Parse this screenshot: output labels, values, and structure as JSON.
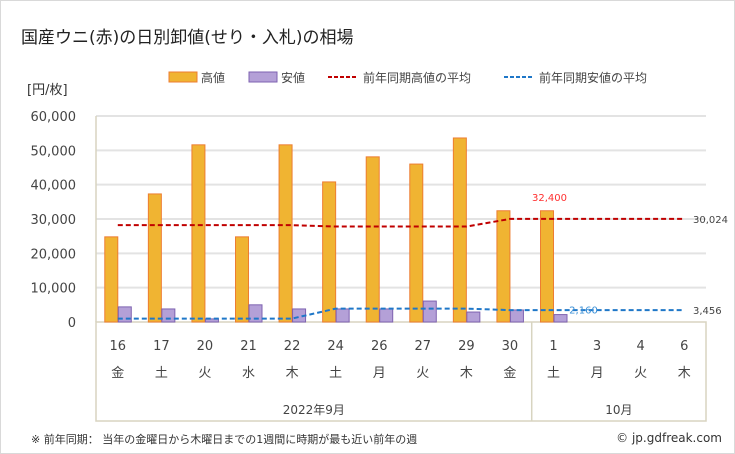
{
  "chart_data": {
    "type": "bar",
    "title": "国産ウニ(赤)の日別卸値(せり・入札)の相場",
    "ylabel": "[円/枚]",
    "ylim": [
      0,
      60000
    ],
    "yticks": [
      "0",
      "10,000",
      "20,000",
      "30,000",
      "40,000",
      "50,000",
      "60,000"
    ],
    "categories": [
      "16",
      "17",
      "20",
      "21",
      "22",
      "24",
      "26",
      "27",
      "29",
      "30",
      "1",
      "3",
      "4",
      "6"
    ],
    "weekdays": [
      "金",
      "土",
      "火",
      "水",
      "木",
      "土",
      "月",
      "火",
      "木",
      "金",
      "土",
      "月",
      "火",
      "木"
    ],
    "months": [
      {
        "label": "2022年9月",
        "count": 10
      },
      {
        "label": "10月",
        "count": 4
      }
    ],
    "legend": [
      "高値",
      "安値",
      "前年同期高値の平均",
      "前年同期安値の平均"
    ],
    "series": [
      {
        "name": "高値",
        "type": "bar",
        "color": "#f0b432",
        "values": [
          24800,
          37300,
          51600,
          24800,
          51600,
          40800,
          48100,
          46000,
          53600,
          32400,
          32400,
          null,
          null,
          null
        ]
      },
      {
        "name": "安値",
        "type": "bar",
        "color": "#b4a0d7",
        "values": [
          4400,
          3800,
          900,
          5000,
          3800,
          3800,
          3800,
          6100,
          2900,
          3500,
          2160,
          null,
          null,
          null
        ]
      },
      {
        "name": "前年同期高値の平均",
        "type": "line",
        "color": "#c00000",
        "values": [
          28200,
          28200,
          28200,
          28200,
          28200,
          27800,
          27800,
          27800,
          27800,
          30024,
          30024,
          30024,
          30024,
          30024
        ]
      },
      {
        "name": "前年同期安値の平均",
        "type": "line",
        "color": "#1f77c8",
        "values": [
          1000,
          1000,
          1000,
          1000,
          1000,
          3900,
          3900,
          3900,
          3900,
          3456,
          3456,
          3456,
          3456,
          3456
        ]
      }
    ],
    "annotations": {
      "high_last": "32,400",
      "low_last": "2,160",
      "high_avg_end": "30,024",
      "low_avg_end": "3,456"
    }
  },
  "footer": {
    "note": "※ 前年同期： 当年の金曜日から木曜日までの1週間に時期が最も近い前年の週",
    "credit": "© jp.gdfreak.com"
  }
}
